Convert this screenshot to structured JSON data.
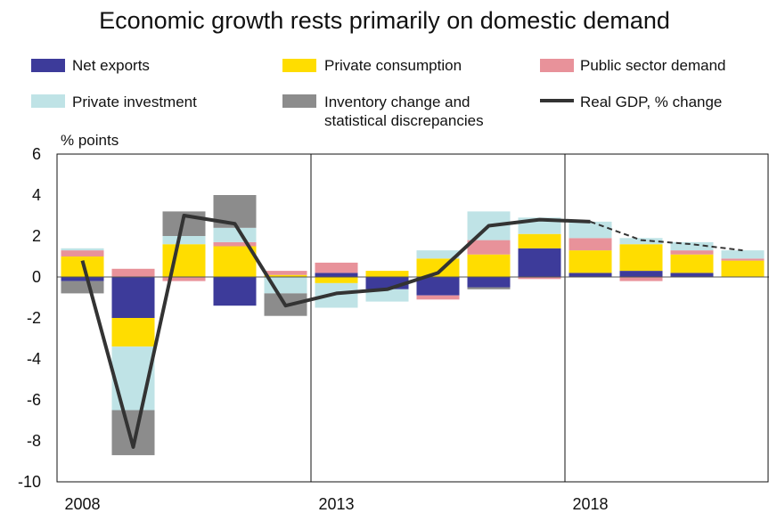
{
  "chart_data": {
    "type": "bar",
    "title": "Economic growth rests primarily on domestic demand",
    "ylabel": "% points",
    "ylim": [
      -10,
      6
    ],
    "yticks": [
      6,
      4,
      2,
      0,
      -2,
      -4,
      -6,
      -8,
      -10
    ],
    "x_labels": [
      {
        "label": "2008",
        "year": 2008
      },
      {
        "label": "2013",
        "year": 2013
      },
      {
        "label": "2018",
        "year": 2018
      }
    ],
    "separators": [
      2012.5,
      2017.5
    ],
    "categories": [
      2008,
      2009,
      2010,
      2011,
      2012,
      2013,
      2014,
      2015,
      2016,
      2017,
      2018,
      2019,
      2020,
      2021
    ],
    "series": [
      {
        "name": "Net exports",
        "color": "#3d3b9a",
        "values": [
          -0.2,
          -2.0,
          0.0,
          -1.4,
          0.0,
          0.2,
          -0.6,
          -0.9,
          -0.5,
          1.4,
          0.2,
          0.3,
          0.2,
          0.0
        ]
      },
      {
        "name": "Private consumption",
        "color": "#ffdd00",
        "values": [
          1.0,
          -1.4,
          1.6,
          1.5,
          0.1,
          -0.3,
          0.3,
          0.9,
          1.1,
          0.7,
          1.1,
          1.3,
          0.9,
          0.8
        ]
      },
      {
        "name": "Public sector demand",
        "color": "#e8929a",
        "values": [
          0.3,
          0.4,
          -0.2,
          0.2,
          0.2,
          0.5,
          0.0,
          -0.2,
          0.7,
          -0.1,
          0.6,
          -0.2,
          0.2,
          0.1
        ]
      },
      {
        "name": "Private investment",
        "color": "#bfe3e6",
        "values": [
          0.1,
          -3.1,
          0.4,
          0.7,
          -0.8,
          -1.2,
          -0.6,
          0.4,
          1.4,
          0.8,
          0.8,
          0.3,
          0.4,
          0.4
        ]
      },
      {
        "name": "Inventory change and statistical discrepancies",
        "color": "#8c8c8c",
        "values": [
          -0.6,
          -2.2,
          1.2,
          1.6,
          -1.1,
          0.0,
          0.0,
          0.0,
          -0.1,
          0.0,
          0.0,
          0.0,
          0.0,
          0.0
        ]
      }
    ],
    "line": {
      "name": "Real GDP, % change",
      "color": "#333333",
      "values": [
        0.8,
        -8.3,
        3.0,
        2.6,
        -1.4,
        -0.8,
        -0.6,
        0.2,
        2.5,
        2.8,
        2.7,
        1.8,
        1.6,
        1.3
      ],
      "forecast_from_index": 10
    },
    "legend": [
      {
        "key": "Net exports",
        "kind": "box",
        "color": "#3d3b9a",
        "lines": [
          "Net exports"
        ]
      },
      {
        "key": "Private consumption",
        "kind": "box",
        "color": "#ffdd00",
        "lines": [
          "Private consumption"
        ]
      },
      {
        "key": "Public sector demand",
        "kind": "box",
        "color": "#e8929a",
        "lines": [
          "Public sector demand"
        ]
      },
      {
        "key": "Private investment",
        "kind": "box",
        "color": "#bfe3e6",
        "lines": [
          "Private investment"
        ]
      },
      {
        "key": "Inventory change",
        "kind": "box",
        "color": "#8c8c8c",
        "lines": [
          "Inventory change and",
          "statistical discrepancies"
        ]
      },
      {
        "key": "Real GDP",
        "kind": "line",
        "color": "#333333",
        "lines": [
          "Real GDP, % change"
        ]
      }
    ],
    "legend_placement": "top",
    "grid": false
  }
}
